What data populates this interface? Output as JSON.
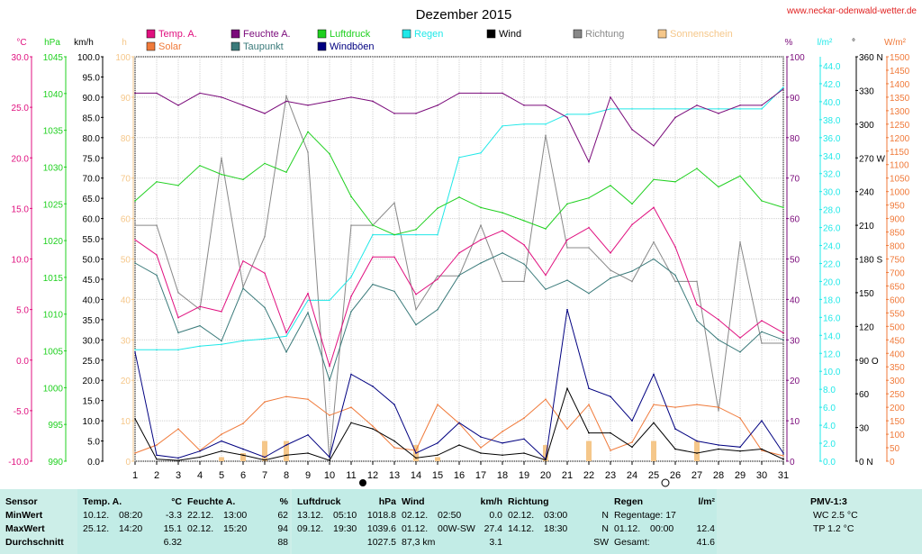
{
  "title": "Dezember 2015",
  "website": "www.neckar-odenwald-wetter.de",
  "colors": {
    "temp": "#e0107f",
    "feuchte": "#7a0a7a",
    "luftdruck": "#20d020",
    "regen": "#20e8e8",
    "wind": "#000000",
    "richtung": "#888888",
    "sonne": "#f5c78a",
    "solar": "#f07a3a",
    "taupunkt": "#3a7a7a",
    "windboeen": "#000080",
    "stats_bg": "#cceee8"
  },
  "legend": [
    {
      "label": "Temp. A.",
      "color": "#e0107f"
    },
    {
      "label": "Feuchte A.",
      "color": "#7a0a7a"
    },
    {
      "label": "Luftdruck",
      "color": "#20d020"
    },
    {
      "label": "Regen",
      "color": "#20e8e8"
    },
    {
      "label": "Wind",
      "color": "#000000"
    },
    {
      "label": "Richtung",
      "color": "#888888"
    },
    {
      "label": "Sonnenschein",
      "color": "#f5c78a"
    },
    {
      "label": "Solar",
      "color": "#f07a3a"
    },
    {
      "label": "Taupunkt",
      "color": "#3a7a7a"
    },
    {
      "label": "Windböen",
      "color": "#000080"
    }
  ],
  "axes": [
    {
      "unit": "°C",
      "ticks": [
        "30.0",
        "25.0",
        "20.0",
        "15.0",
        "10.0",
        "5.0",
        "0.0",
        "-5.0",
        "-10.0"
      ],
      "min": -10,
      "max": 30,
      "color": "#e0107f"
    },
    {
      "unit": "hPa",
      "ticks": [
        "1045",
        "1040",
        "1035",
        "1030",
        "1025",
        "1020",
        "1015",
        "1010",
        "1005",
        "1000",
        "995",
        "990"
      ],
      "min": 990,
      "max": 1045,
      "color": "#20d020"
    },
    {
      "unit": "km/h",
      "ticks": [
        "100.0",
        "95.0",
        "90.0",
        "85.0",
        "80.0",
        "75.0",
        "70.0",
        "65.0",
        "60.0",
        "55.0",
        "50.0",
        "45.0",
        "40.0",
        "35.0",
        "30.0",
        "25.0",
        "20.0",
        "15.0",
        "10.0",
        "5.0",
        "0.0"
      ],
      "min": 0,
      "max": 100,
      "color": "#000000"
    },
    {
      "unit": "h",
      "ticks": [
        "100",
        "90",
        "80",
        "70",
        "60",
        "50",
        "40",
        "30",
        "20",
        "10",
        "0"
      ],
      "min": 0,
      "max": 100,
      "color": "#f5c78a"
    },
    {
      "unit": "%",
      "ticks": [
        "100",
        "90",
        "80",
        "70",
        "60",
        "50",
        "40",
        "30",
        "20",
        "10",
        "0"
      ],
      "min": 0,
      "max": 100,
      "color": "#7a0a7a"
    },
    {
      "unit": "l/m²",
      "ticks": [
        "44.0",
        "42.0",
        "40.0",
        "38.0",
        "36.0",
        "34.0",
        "32.0",
        "30.0",
        "28.0",
        "26.0",
        "24.0",
        "22.0",
        "20.0",
        "18.0",
        "16.0",
        "14.0",
        "12.0",
        "10.0",
        "8.0",
        "6.0",
        "4.0",
        "2.0",
        "0.0"
      ],
      "min": 0,
      "max": 45,
      "color": "#20e8e8"
    },
    {
      "unit": "°",
      "ticks": [
        "360 N",
        "330",
        "300",
        "270 W",
        "240",
        "210",
        "180 S",
        "150",
        "120",
        "90 O",
        "60",
        "30",
        "0 N"
      ],
      "min": 0,
      "max": 360,
      "color": "#000000"
    },
    {
      "unit": "W/m²",
      "ticks": [
        "1500",
        "1450",
        "1400",
        "1350",
        "1300",
        "1250",
        "1200",
        "1150",
        "1100",
        "1050",
        "1000",
        "950",
        "900",
        "850",
        "800",
        "750",
        "700",
        "650",
        "600",
        "550",
        "500",
        "450",
        "400",
        "350",
        "300",
        "250",
        "200",
        "150",
        "100",
        "50",
        "0"
      ],
      "min": 0,
      "max": 1500,
      "color": "#f07a3a"
    }
  ],
  "chart_data": {
    "type": "line",
    "title": "Dezember 2015",
    "x": [
      "1",
      "2",
      "3",
      "4",
      "5",
      "6",
      "7",
      "8",
      "9",
      "10",
      "11",
      "12",
      "13",
      "14",
      "15",
      "16",
      "17",
      "18",
      "19",
      "20",
      "21",
      "22",
      "23",
      "24",
      "25",
      "26",
      "27",
      "28",
      "29",
      "30",
      "31"
    ],
    "series": [
      {
        "name": "Temp. A.",
        "axis": "°C",
        "values": [
          11.9,
          10.4,
          4.2,
          5.3,
          4.8,
          9.8,
          8.6,
          2.7,
          6.6,
          -0.6,
          6.3,
          10.2,
          10.2,
          6.5,
          8.0,
          10.6,
          11.9,
          12.8,
          11.4,
          8.4,
          11.9,
          13.1,
          10.6,
          13.4,
          15.1,
          11.2,
          5.5,
          4.0,
          2.2,
          3.9,
          2.7
        ]
      },
      {
        "name": "Feuchte A.",
        "axis": "%",
        "values": [
          91,
          91,
          88,
          91,
          90,
          88,
          86,
          89,
          88,
          89,
          90,
          89,
          86,
          86,
          88,
          91,
          91,
          91,
          88,
          88,
          85,
          74,
          90,
          82,
          78,
          85,
          88,
          86,
          88,
          88,
          92
        ]
      },
      {
        "name": "Luftdruck",
        "axis": "hPa",
        "values": [
          1025.4,
          1028.0,
          1027.5,
          1030.2,
          1029.0,
          1028.3,
          1030.5,
          1029.3,
          1034.8,
          1031.8,
          1026.0,
          1022.1,
          1020.8,
          1021.5,
          1024.4,
          1025.9,
          1024.5,
          1023.8,
          1022.7,
          1021.6,
          1025.0,
          1025.8,
          1027.5,
          1025.0,
          1028.3,
          1028.0,
          1029.8,
          1027.3,
          1028.8,
          1025.4,
          1024.5
        ]
      },
      {
        "name": "Regen",
        "axis": "l/m²",
        "values": [
          12.4,
          12.4,
          12.4,
          12.8,
          13.0,
          13.4,
          13.6,
          13.9,
          17.9,
          17.9,
          20.5,
          25.2,
          25.2,
          25.2,
          25.2,
          33.8,
          34.3,
          37.3,
          37.5,
          37.5,
          38.6,
          38.6,
          39.2,
          39.2,
          39.2,
          39.2,
          39.2,
          39.2,
          39.2,
          39.2,
          41.6
        ]
      },
      {
        "name": "Wind",
        "axis": "km/h",
        "values": [
          10.5,
          0.5,
          0.2,
          1.0,
          2.5,
          1.5,
          0.3,
          1.5,
          2.0,
          0.2,
          9.5,
          8.0,
          5.0,
          0.8,
          1.5,
          4.0,
          2.0,
          1.5,
          2.0,
          0.3,
          18.0,
          7.0,
          7.0,
          3.5,
          9.5,
          3.0,
          2.0,
          3.0,
          2.5,
          3.0,
          0.5
        ]
      },
      {
        "name": "Richtung",
        "axis": "°",
        "values": [
          210,
          210,
          150,
          135,
          270,
          155,
          200,
          325,
          275,
          0,
          210,
          210,
          230,
          135,
          165,
          165,
          210,
          160,
          160,
          290,
          190,
          190,
          170,
          160,
          195,
          160,
          160,
          45,
          195,
          105,
          105
        ]
      },
      {
        "name": "Solar",
        "axis": "W/m²",
        "values": [
          30,
          60,
          120,
          40,
          100,
          140,
          220,
          240,
          230,
          170,
          200,
          130,
          50,
          40,
          210,
          140,
          50,
          110,
          160,
          230,
          120,
          210,
          40,
          70,
          210,
          200,
          210,
          200,
          160,
          40,
          20
        ]
      },
      {
        "name": "Taupunkt",
        "axis": "°C",
        "values": [
          9.6,
          8.4,
          2.7,
          3.4,
          1.9,
          7.1,
          5.2,
          0.8,
          4.7,
          -2.0,
          4.8,
          7.5,
          6.8,
          3.5,
          5.0,
          8.4,
          9.6,
          10.6,
          9.5,
          7.0,
          7.9,
          6.6,
          8.1,
          8.8,
          10.0,
          8.4,
          3.9,
          2.0,
          0.8,
          2.8,
          2.0
        ]
      },
      {
        "name": "Windböen",
        "axis": "km/h",
        "values": [
          27.0,
          1.5,
          0.8,
          2.5,
          5.0,
          3.0,
          1.0,
          4.0,
          6.5,
          1.0,
          21.5,
          18.5,
          14.0,
          2.0,
          4.5,
          9.5,
          6.0,
          4.5,
          5.5,
          0.5,
          37.5,
          18.0,
          16.0,
          10.0,
          21.5,
          8.0,
          5.0,
          4.0,
          3.5,
          10.0,
          2.0
        ]
      },
      {
        "name": "Sonnenschein",
        "axis": "h",
        "values": [
          0,
          0,
          0,
          0,
          1,
          2,
          5,
          5,
          0,
          0,
          0,
          0,
          0,
          4,
          1,
          0,
          0,
          0,
          0,
          4,
          0,
          5,
          0,
          0,
          5,
          0,
          5,
          0,
          0,
          0,
          0
        ]
      }
    ],
    "xlim": [
      1,
      31
    ]
  },
  "stats": {
    "sensor_col": {
      "header": "Sensor",
      "rows": [
        "MinWert",
        "MaxWert",
        "Durchschnitt"
      ]
    },
    "groups": [
      {
        "label": "Temp. A.",
        "unit": "°C",
        "rows": [
          [
            "10.12.",
            "08:20",
            "-3.3"
          ],
          [
            "25.12.",
            "14:20",
            "15.1"
          ],
          [
            "",
            "",
            "6.32"
          ]
        ]
      },
      {
        "label": "Feuchte A.",
        "unit": "%",
        "rows": [
          [
            "22.12.",
            "13:00",
            "62"
          ],
          [
            "02.12.",
            "15:20",
            "94"
          ],
          [
            "",
            "",
            "88"
          ]
        ]
      },
      {
        "label": "Luftdruck",
        "unit": "hPa",
        "rows": [
          [
            "13.12.",
            "05:10",
            "1018.8"
          ],
          [
            "09.12.",
            "19:30",
            "1039.6"
          ],
          [
            "",
            "",
            "1027.5"
          ]
        ]
      },
      {
        "label": "Wind",
        "unit": "km/h",
        "rows": [
          [
            "02.12.",
            "02:50",
            "0.0"
          ],
          [
            "01.12.",
            "00W-SW",
            "27.4"
          ],
          [
            "87,3 km",
            "",
            "3.1"
          ]
        ]
      },
      {
        "label": "Richtung",
        "unit": "",
        "rows": [
          [
            "02.12.",
            "03:00",
            "N"
          ],
          [
            "14.12.",
            "18:30",
            "N"
          ],
          [
            "",
            "",
            "SW"
          ]
        ]
      },
      {
        "label": "Regen",
        "unit": "l/m²",
        "rows": [
          [
            "Regentage: 17",
            "",
            ""
          ],
          [
            "01.12.",
            "00:00",
            "12.4"
          ],
          [
            "Gesamt:",
            "",
            "41.6"
          ]
        ]
      }
    ],
    "pmv": {
      "header": "PMV-1:3",
      "rows": [
        "WC 2.5 °C",
        "TP 1.2 °C"
      ]
    }
  }
}
